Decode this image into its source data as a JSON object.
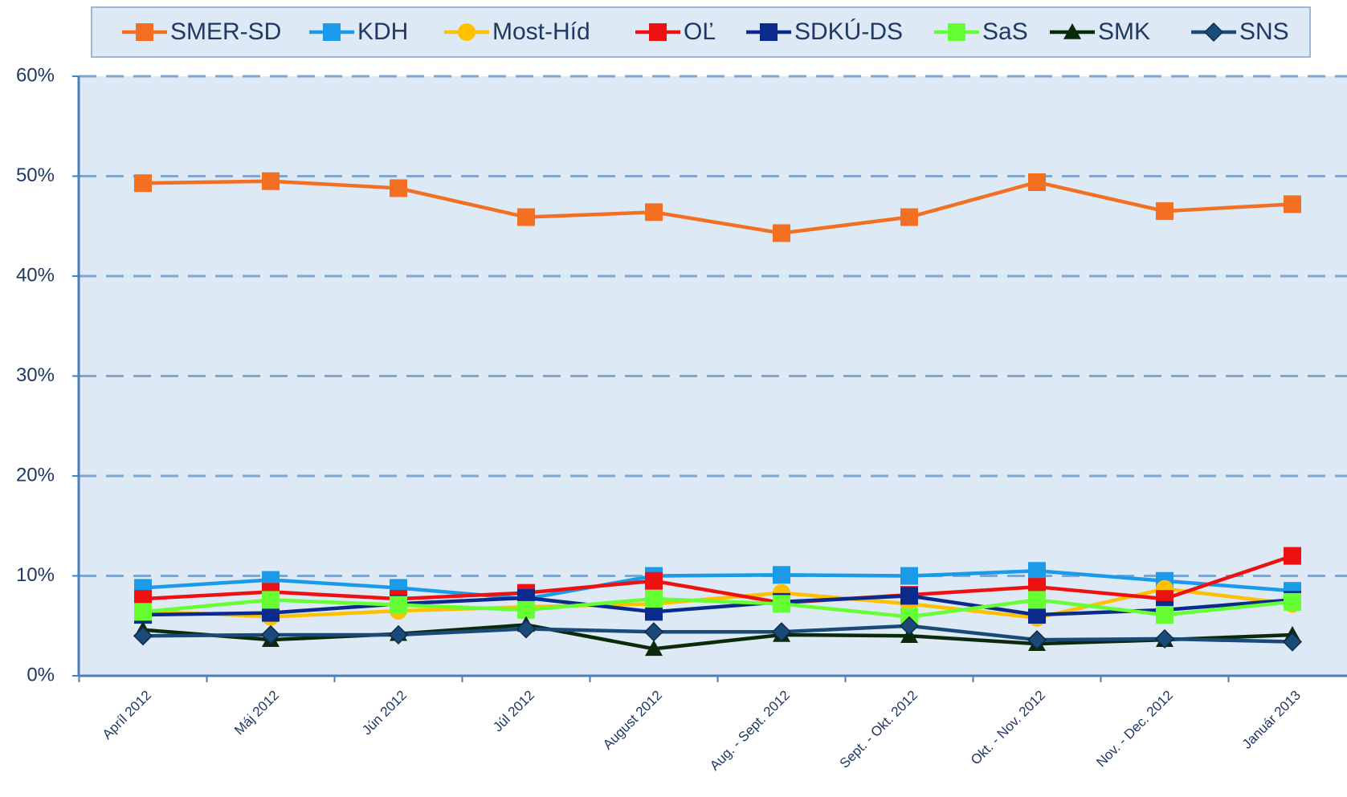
{
  "chart_data": {
    "type": "line",
    "categories": [
      "Apríl 2012",
      "Máj 2012",
      "Jún 2012",
      "Júl 2012",
      "August 2012",
      "Aug. - Sept. 2012",
      "Sept. - Okt. 2012",
      "Okt. - Nov. 2012",
      "Nov. - Dec. 2012",
      "Január 2013"
    ],
    "series": [
      {
        "name": "SMER-SD",
        "color": "#f36f21",
        "marker": "square",
        "values": [
          49.3,
          49.5,
          48.8,
          45.9,
          46.4,
          44.3,
          45.9,
          49.4,
          46.5,
          47.2
        ]
      },
      {
        "name": "KDH",
        "color": "#1a9ae8",
        "marker": "square",
        "values": [
          8.8,
          9.6,
          8.8,
          7.7,
          10.0,
          10.1,
          10.0,
          10.5,
          9.5,
          8.5
        ]
      },
      {
        "name": "Most-Híd",
        "color": "#ffc000",
        "marker": "circle",
        "values": [
          6.5,
          5.9,
          6.5,
          6.9,
          7.2,
          8.3,
          7.2,
          5.8,
          8.7,
          7.2
        ]
      },
      {
        "name": "OĽ",
        "color": "#ee1111",
        "marker": "square",
        "values": [
          7.7,
          8.4,
          7.7,
          8.3,
          9.5,
          7.3,
          8.1,
          8.9,
          7.7,
          12.0
        ]
      },
      {
        "name": "SDKÚ-DS",
        "color": "#0a2a8c",
        "marker": "square",
        "values": [
          6.1,
          6.3,
          7.2,
          7.8,
          6.4,
          7.4,
          8.0,
          6.1,
          6.6,
          7.6
        ]
      },
      {
        "name": "SaS",
        "color": "#66ff33",
        "marker": "square",
        "values": [
          6.4,
          7.6,
          7.1,
          6.6,
          7.7,
          7.2,
          5.9,
          7.6,
          6.1,
          7.4
        ]
      },
      {
        "name": "SMK",
        "color": "#0b2a0b",
        "marker": "triangle",
        "values": [
          4.6,
          3.6,
          4.2,
          5.1,
          2.7,
          4.1,
          4.0,
          3.2,
          3.6,
          4.1
        ]
      },
      {
        "name": "SNS",
        "color": "#1a4a78",
        "marker": "diamond",
        "values": [
          4.0,
          4.1,
          4.1,
          4.7,
          4.4,
          4.4,
          5.0,
          3.6,
          3.7,
          3.4
        ]
      }
    ],
    "ylim": [
      0,
      60
    ],
    "yticks": [
      {
        "value": 0,
        "label": "0%"
      },
      {
        "value": 10,
        "label": "10%"
      },
      {
        "value": 20,
        "label": "20%"
      },
      {
        "value": 30,
        "label": "30%"
      },
      {
        "value": 40,
        "label": "40%"
      },
      {
        "value": 50,
        "label": "50%"
      },
      {
        "value": 60,
        "label": "60%"
      }
    ],
    "grid": true,
    "legend": "top"
  }
}
